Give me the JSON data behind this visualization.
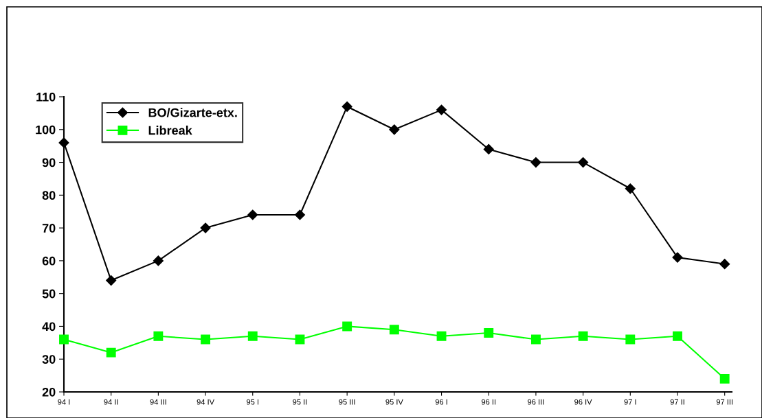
{
  "chart_data": {
    "type": "line",
    "categories": [
      "94 I",
      "94 II",
      "94 III",
      "94 IV",
      "95 I",
      "95 II",
      "95 III",
      "95 IV",
      "96 I",
      "96 II",
      "96 III",
      "96 IV",
      "97 I",
      "97 II",
      "97 III"
    ],
    "series": [
      {
        "name": "BO/Gizarte-etx.",
        "color": "#000000",
        "marker": "diamond",
        "values": [
          96,
          54,
          60,
          70,
          74,
          74,
          107,
          100,
          106,
          94,
          90,
          90,
          82,
          61,
          59
        ]
      },
      {
        "name": "Libreak",
        "color": "#00ff00",
        "marker": "square",
        "values": [
          36,
          32,
          37,
          36,
          37,
          36,
          40,
          39,
          37,
          38,
          36,
          37,
          36,
          37,
          24
        ]
      }
    ],
    "ylim": [
      20,
      110
    ],
    "yticks": [
      20,
      30,
      40,
      50,
      60,
      70,
      80,
      90,
      100,
      110
    ],
    "grid": false,
    "legend": "top left",
    "line_style": "solid"
  }
}
